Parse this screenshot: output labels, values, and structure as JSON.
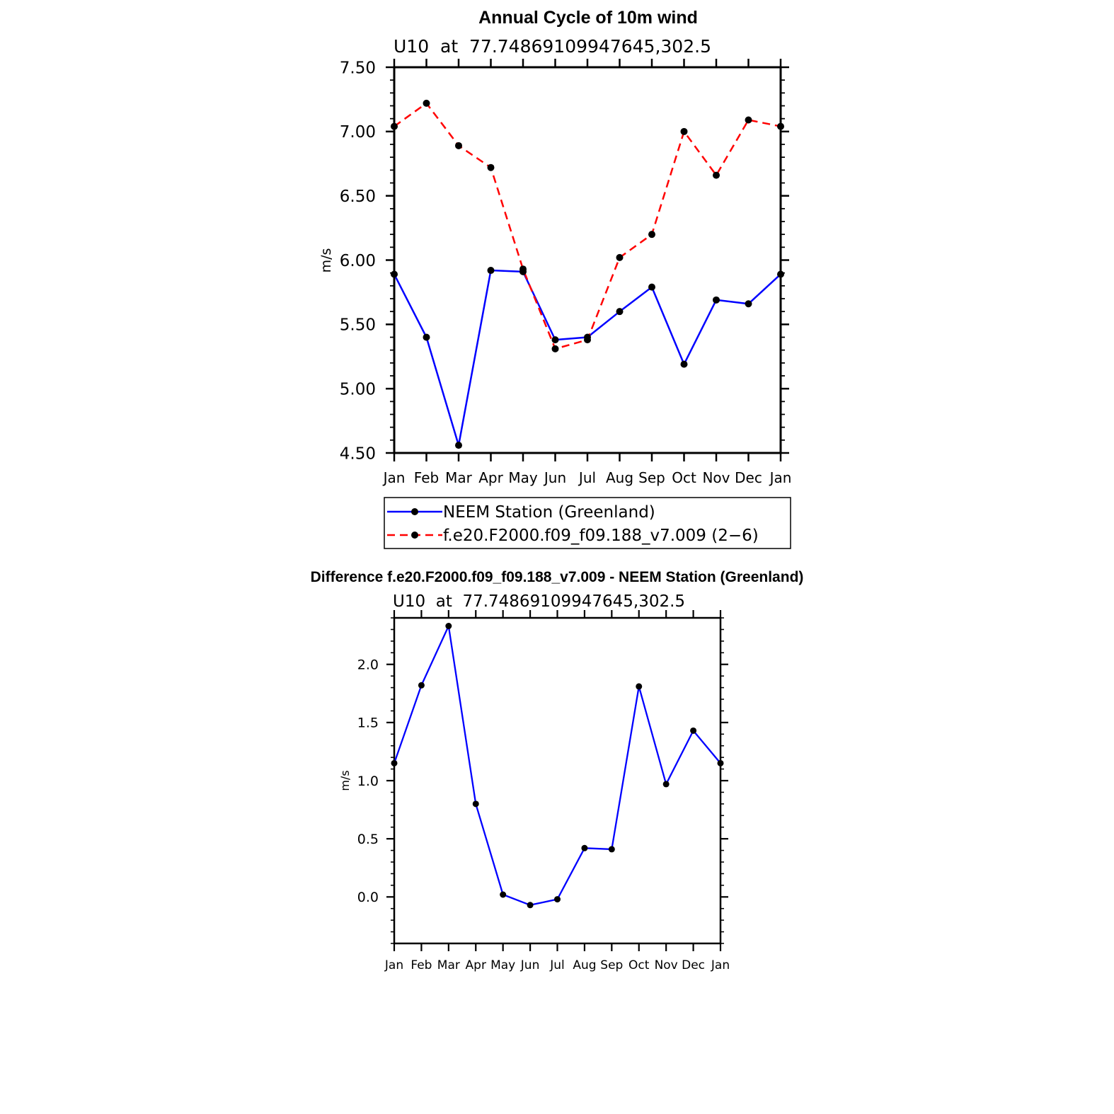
{
  "colors": {
    "obs": "#0000ff",
    "model": "#ff0000",
    "marker": "#000000",
    "axis": "#000000"
  },
  "chart_data": [
    {
      "type": "line",
      "title": "Annual Cycle of 10m wind",
      "subtitle": "U10  at  77.74869109947645,302.5",
      "ylabel": "m/s",
      "xlabel": "",
      "categories": [
        "Jan",
        "Feb",
        "Mar",
        "Apr",
        "May",
        "Jun",
        "Jul",
        "Aug",
        "Sep",
        "Oct",
        "Nov",
        "Dec",
        "Jan"
      ],
      "ylim": [
        4.5,
        7.5
      ],
      "y_ticks": [
        "4.50",
        "5.00",
        "5.50",
        "6.00",
        "6.50",
        "7.00",
        "7.50"
      ],
      "grid": false,
      "legend_position": "bottom",
      "series": [
        {
          "name": "NEEM Station (Greenland)",
          "style": "solid",
          "color": "#0000ff",
          "values": [
            5.89,
            5.4,
            4.56,
            5.92,
            5.91,
            5.38,
            5.4,
            5.6,
            5.79,
            5.19,
            5.69,
            5.66,
            5.89
          ]
        },
        {
          "name": "f.e20.F2000.f09_f09.188_v7.009 (2−6)",
          "style": "dashed",
          "color": "#ff0000",
          "values": [
            7.04,
            7.22,
            6.89,
            6.72,
            5.93,
            5.31,
            5.38,
            6.02,
            6.2,
            7.0,
            6.66,
            7.09,
            7.04
          ]
        }
      ]
    },
    {
      "type": "line",
      "title": "Difference f.e20.F2000.f09_f09.188_v7.009 - NEEM Station (Greenland)",
      "subtitle": "U10  at  77.74869109947645,302.5",
      "ylabel": "m/s",
      "xlabel": "",
      "categories": [
        "Jan",
        "Feb",
        "Mar",
        "Apr",
        "May",
        "Jun",
        "Jul",
        "Aug",
        "Sep",
        "Oct",
        "Nov",
        "Dec",
        "Jan"
      ],
      "ylim": [
        -0.4,
        2.4
      ],
      "y_ticks": [
        "0.0",
        "0.5",
        "1.0",
        "1.5",
        "2.0"
      ],
      "y_tick_values": [
        0.0,
        0.5,
        1.0,
        1.5,
        2.0
      ],
      "grid": false,
      "series": [
        {
          "style": "solid",
          "color": "#0000ff",
          "values": [
            1.15,
            1.82,
            2.33,
            0.8,
            0.02,
            -0.07,
            -0.02,
            0.42,
            0.41,
            1.81,
            0.97,
            1.43,
            1.15
          ]
        }
      ]
    }
  ]
}
